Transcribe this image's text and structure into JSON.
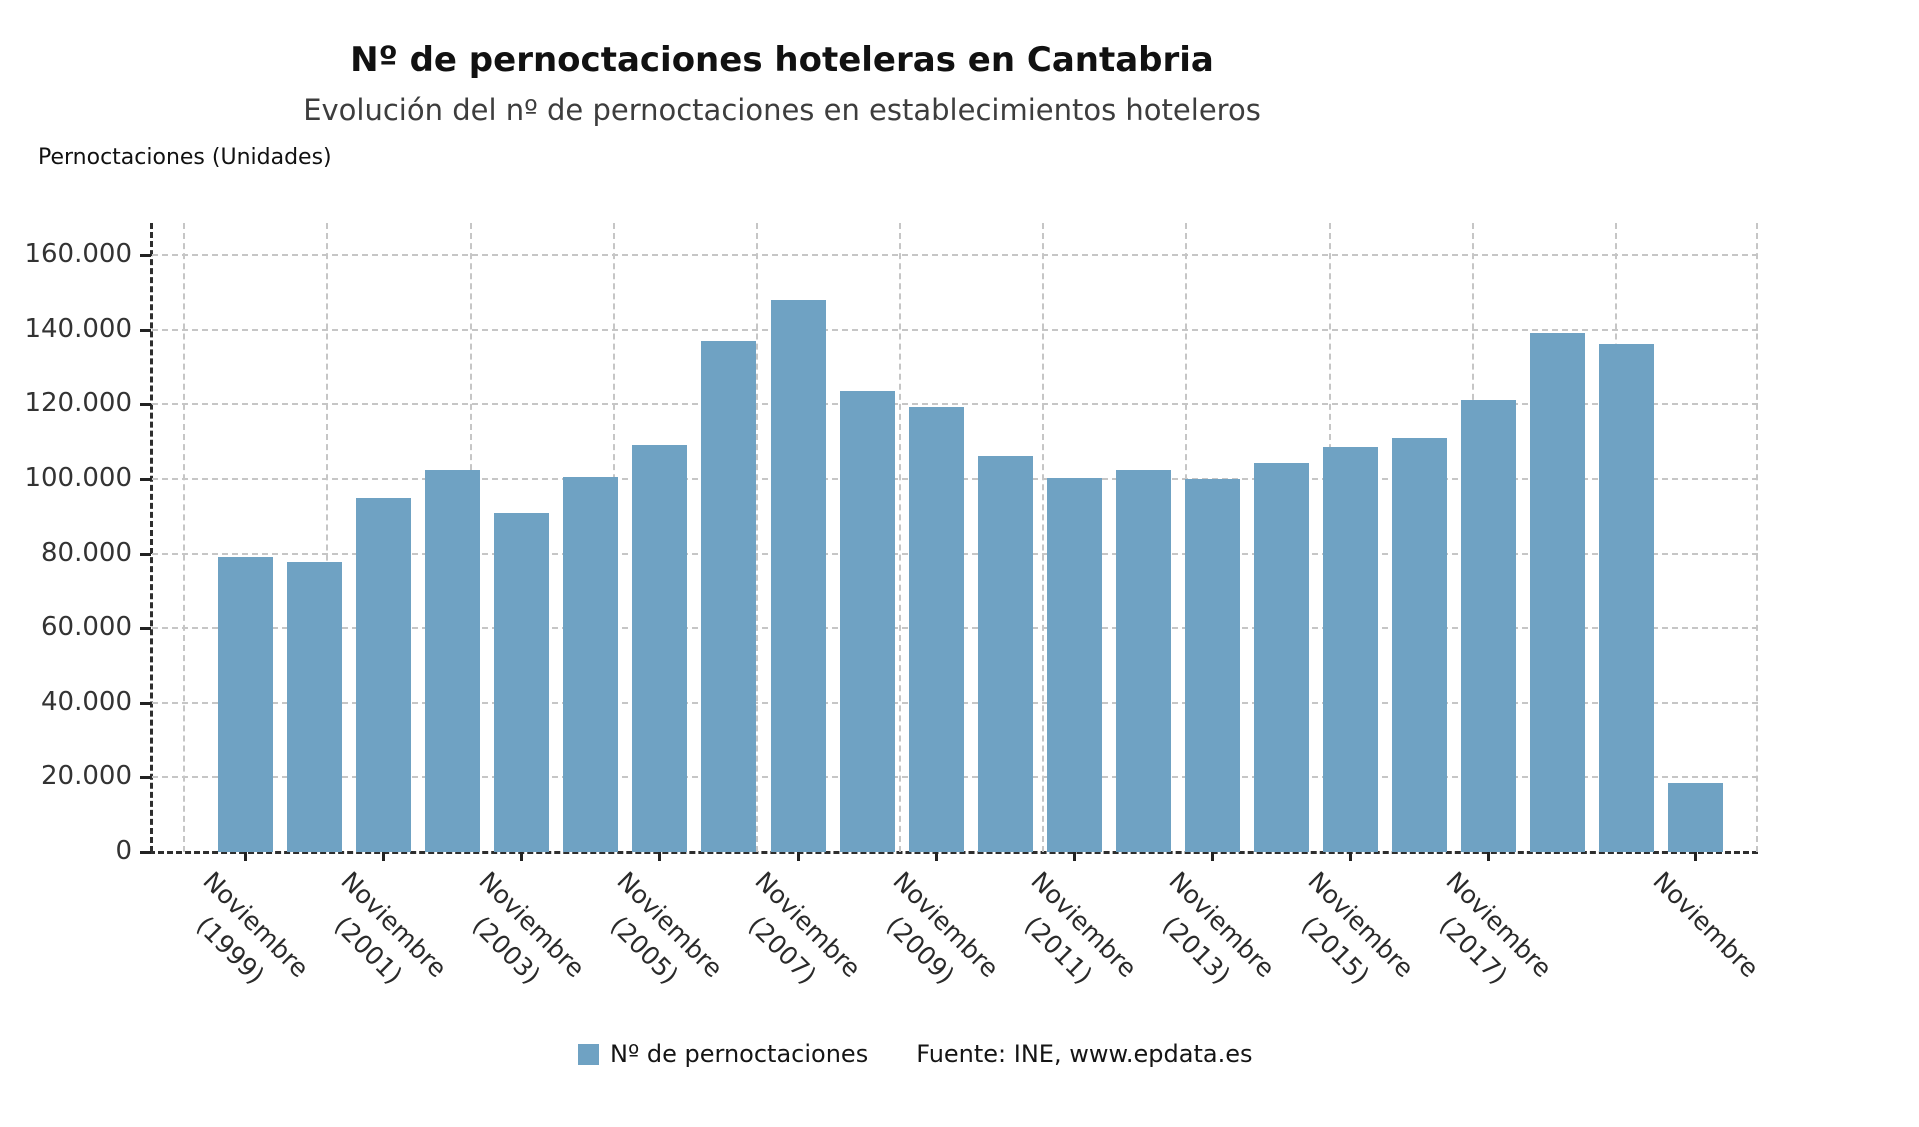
{
  "header": {
    "title": "Nº de pernoctaciones hoteleras en Cantabria",
    "subtitle": "Evolución del nº de pernoctaciones en establecimientos hoteleros"
  },
  "legend": {
    "series_label": "Nº de pernoctaciones",
    "source": "Fuente: INE, www.epdata.es",
    "swatch_color": "#6FA2C3"
  },
  "chart_data": {
    "type": "bar",
    "title": "Nº de pernoctaciones hoteleras en Cantabria",
    "subtitle": "Evolución del nº de pernoctaciones en establecimientos hoteleros",
    "ylabel": "Pernoctaciones (Unidades)",
    "legend_entries": [
      "Nº de pernoctaciones"
    ],
    "legend_position": "bottom",
    "source": "Fuente: INE, www.epdata.es",
    "bar_color": "#6FA2C3",
    "grid": true,
    "ylim": [
      0,
      168600
    ],
    "y_ticks": [
      {
        "value": 0,
        "label": "0"
      },
      {
        "value": 20000,
        "label": "20.000"
      },
      {
        "value": 40000,
        "label": "40.000"
      },
      {
        "value": 60000,
        "label": "60.000"
      },
      {
        "value": 80000,
        "label": "80.000"
      },
      {
        "value": 100000,
        "label": "100.000"
      },
      {
        "value": 120000,
        "label": "120.000"
      },
      {
        "value": 140000,
        "label": "140.000"
      },
      {
        "value": 160000,
        "label": "160.000"
      }
    ],
    "values": [
      79000,
      77700,
      95000,
      102500,
      91000,
      100400,
      109100,
      136900,
      148000,
      123500,
      119400,
      106200,
      100300,
      102400,
      100000,
      104200,
      108500,
      111100,
      121100,
      139000,
      136300,
      18400
    ],
    "x_ticks": [
      {
        "bar": 0,
        "lines": [
          "Noviembre",
          "(1999)"
        ]
      },
      {
        "bar": 2,
        "lines": [
          "Noviembre",
          "(2001)"
        ]
      },
      {
        "bar": 4,
        "lines": [
          "Noviembre",
          "(2003)"
        ]
      },
      {
        "bar": 6,
        "lines": [
          "Noviembre",
          "(2005)"
        ]
      },
      {
        "bar": 8,
        "lines": [
          "Noviembre",
          "(2007)"
        ]
      },
      {
        "bar": 10,
        "lines": [
          "Noviembre",
          "(2009)"
        ]
      },
      {
        "bar": 12,
        "lines": [
          "Noviembre",
          "(2011)"
        ]
      },
      {
        "bar": 14,
        "lines": [
          "Noviembre",
          "(2013)"
        ]
      },
      {
        "bar": 16,
        "lines": [
          "Noviembre",
          "(2015)"
        ]
      },
      {
        "bar": 18,
        "lines": [
          "Noviembre",
          "(2017)"
        ]
      },
      {
        "bar": 21,
        "lines": [
          "Noviembre"
        ]
      }
    ]
  }
}
